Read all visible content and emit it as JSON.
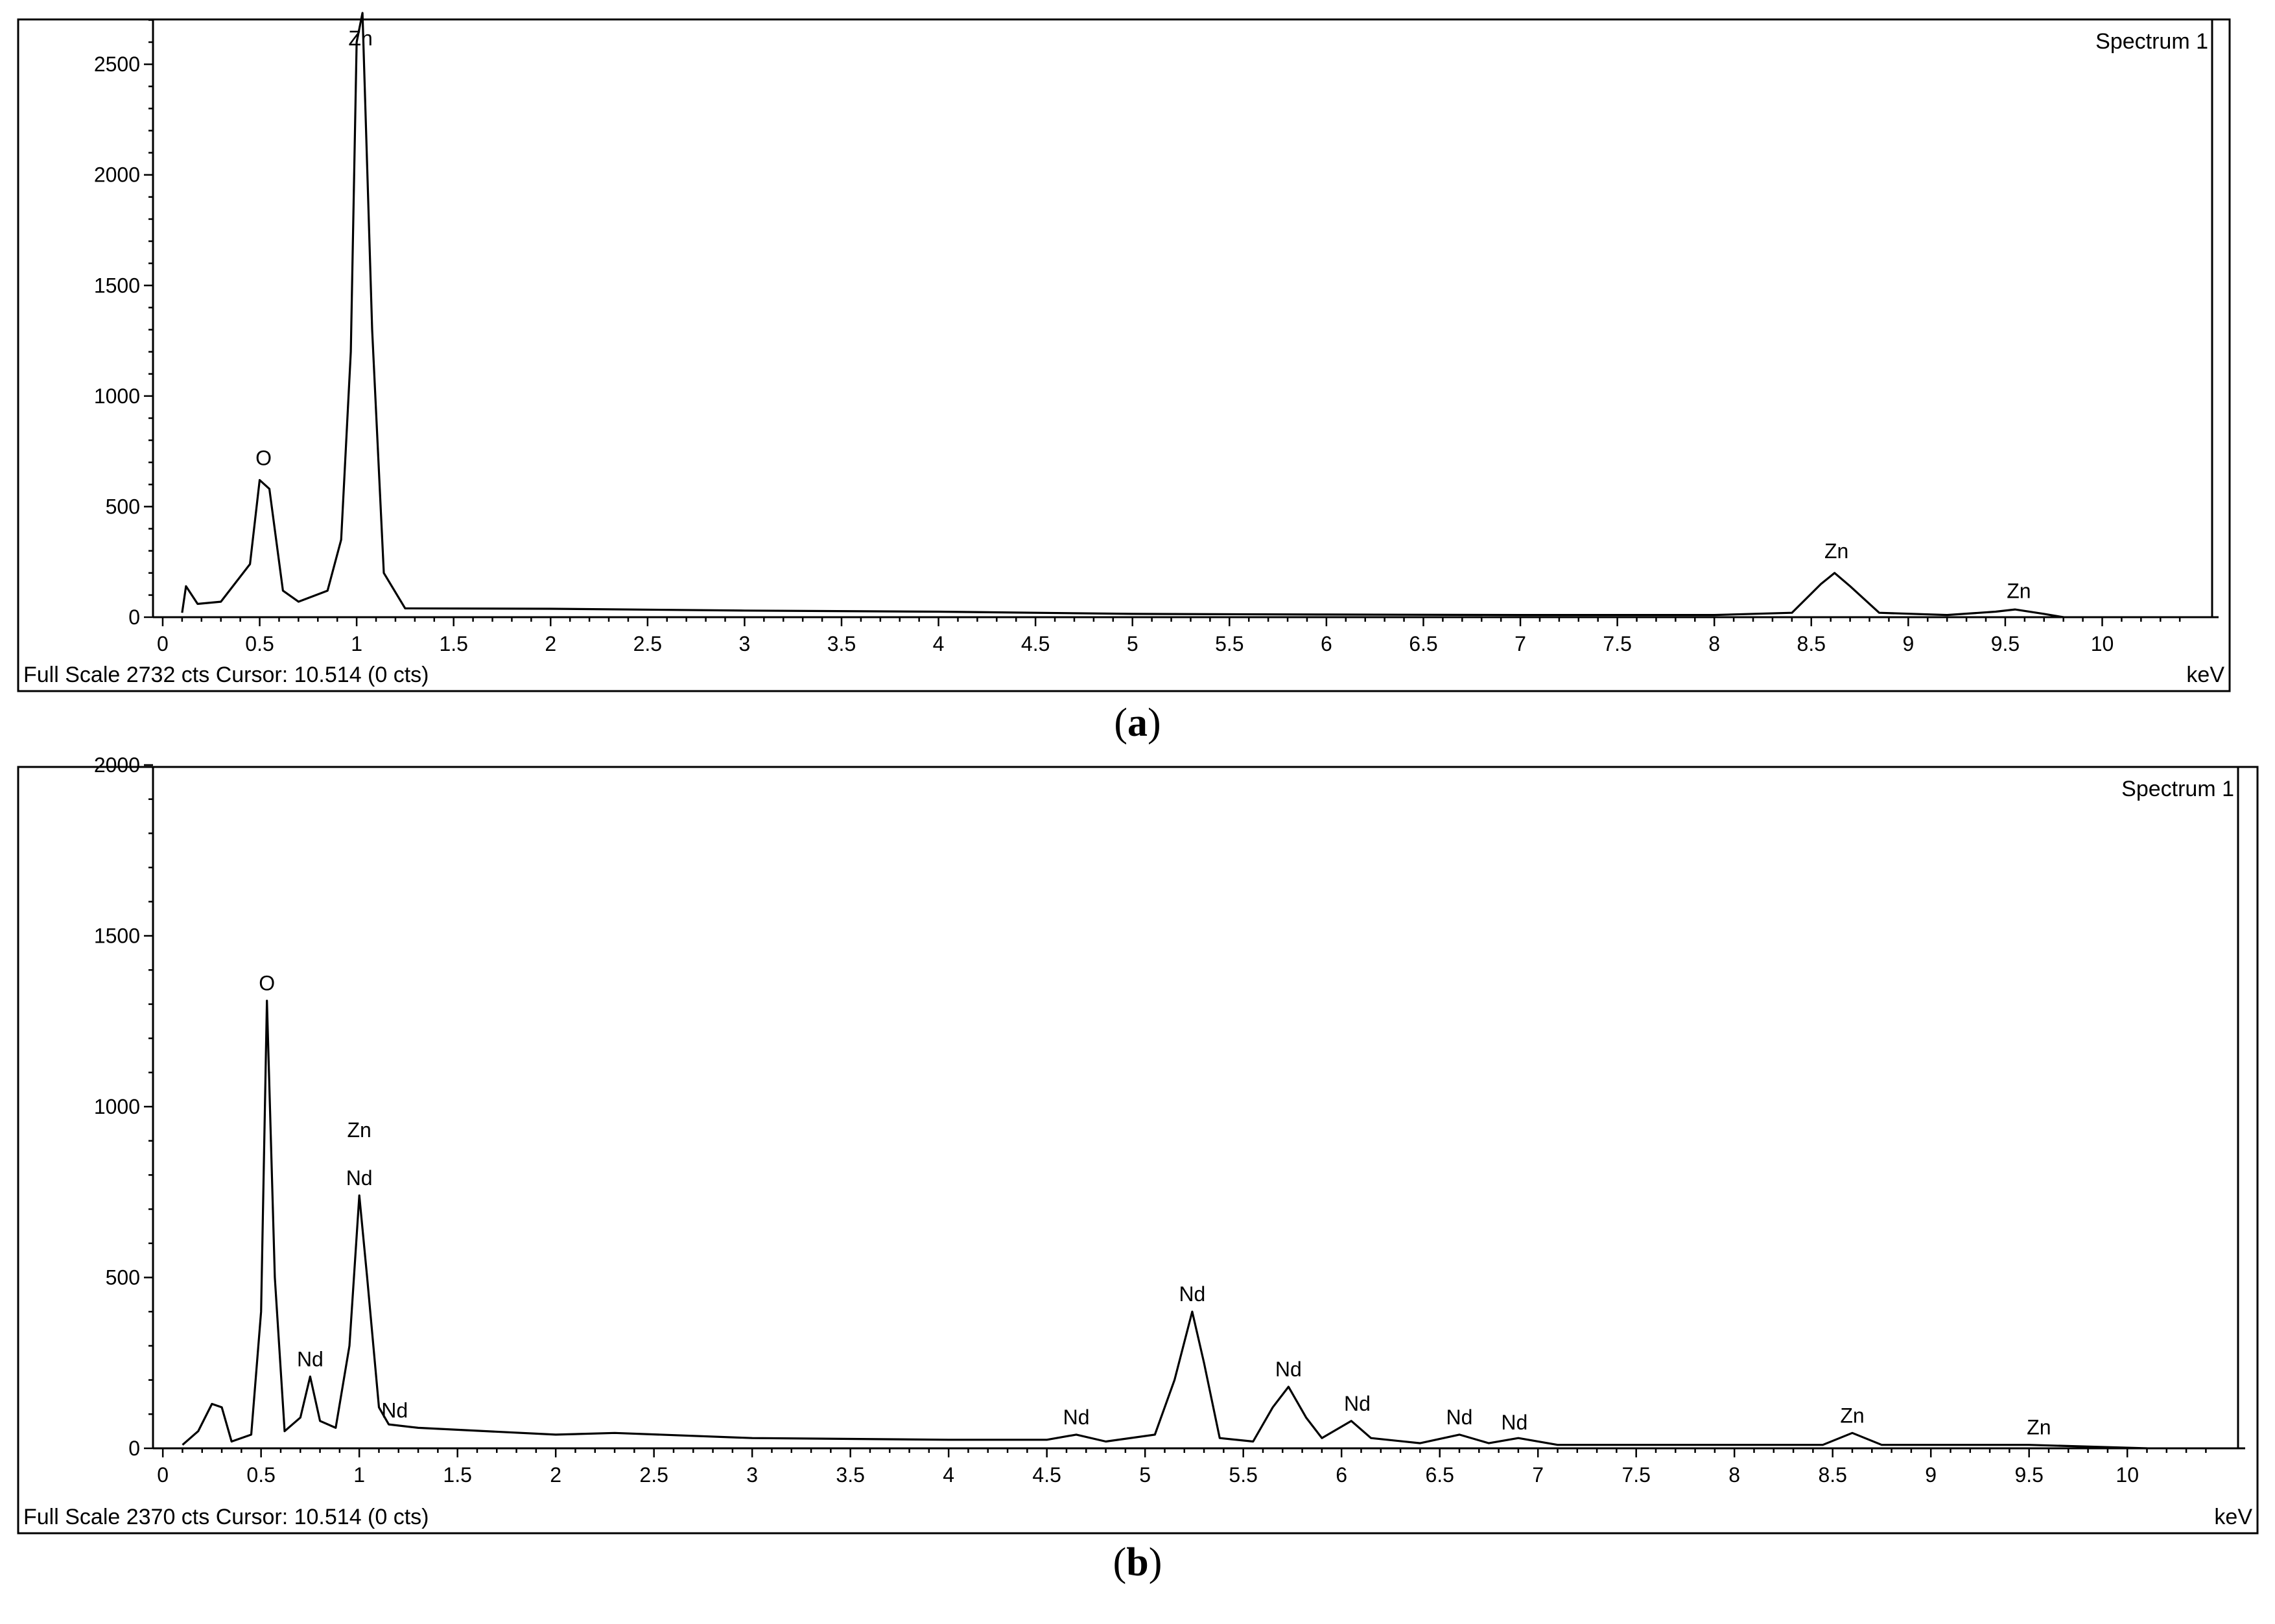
{
  "chart_data": [
    {
      "type": "line",
      "panel_caption": "a",
      "spectrum_label": "Spectrum 1",
      "status_text": "Full Scale 2732 cts Cursor: 10.514  (0 cts)",
      "x_unit": "keV",
      "xlim": [
        -0.05,
        10.6
      ],
      "ylim": [
        0,
        2732
      ],
      "x_ticks": [
        "0",
        "0.5",
        "1",
        "1.5",
        "2",
        "2.5",
        "3",
        "3.5",
        "4",
        "4.5",
        "5",
        "5.5",
        "6",
        "6.5",
        "7",
        "7.5",
        "8",
        "8.5",
        "9",
        "9.5",
        "10"
      ],
      "y_ticks": [
        "0",
        "500",
        "1000",
        "1500",
        "2000",
        "2500"
      ],
      "y_tick_values": [
        0,
        500,
        1000,
        1500,
        2000,
        2500
      ],
      "baseline": [
        [
          0.1,
          20
        ],
        [
          0.12,
          140
        ],
        [
          0.18,
          60
        ],
        [
          0.3,
          70
        ],
        [
          0.45,
          240
        ],
        [
          0.5,
          620
        ],
        [
          0.55,
          580
        ],
        [
          0.62,
          120
        ],
        [
          0.7,
          70
        ],
        [
          0.85,
          120
        ],
        [
          0.92,
          350
        ],
        [
          0.97,
          1200
        ],
        [
          1.0,
          2600
        ],
        [
          1.03,
          2732
        ],
        [
          1.08,
          1300
        ],
        [
          1.14,
          200
        ],
        [
          1.25,
          40
        ],
        [
          2,
          38
        ],
        [
          3,
          30
        ],
        [
          4,
          25
        ],
        [
          5,
          15
        ],
        [
          6,
          12
        ],
        [
          7,
          10
        ],
        [
          8,
          10
        ],
        [
          8.4,
          20
        ],
        [
          8.55,
          150
        ],
        [
          8.62,
          200
        ],
        [
          8.7,
          140
        ],
        [
          8.85,
          20
        ],
        [
          9.2,
          10
        ],
        [
          9.45,
          25
        ],
        [
          9.55,
          35
        ],
        [
          9.7,
          15
        ],
        [
          9.8,
          0
        ]
      ],
      "peaks": [
        {
          "label": "O",
          "x": 0.52,
          "y": 640
        },
        {
          "label": "Zn",
          "x": 1.02,
          "y": 2732
        },
        {
          "label": "Zn",
          "x": 8.63,
          "y": 220
        },
        {
          "label": "Zn",
          "x": 9.57,
          "y": 40
        }
      ]
    },
    {
      "type": "line",
      "panel_caption": "b",
      "spectrum_label": "Spectrum 1",
      "status_text": "Full Scale 2370 cts Cursor: 10.514  (0 cts)",
      "x_unit": "keV",
      "xlim": [
        -0.05,
        10.6
      ],
      "ylim": [
        0,
        2370
      ],
      "x_ticks": [
        "0",
        "0.5",
        "1",
        "1.5",
        "2",
        "2.5",
        "3",
        "3.5",
        "4",
        "4.5",
        "5",
        "5.5",
        "6",
        "6.5",
        "7",
        "7.5",
        "8",
        "8.5",
        "9",
        "9.5",
        "10"
      ],
      "y_ticks": [
        "0",
        "500",
        "1000",
        "1500",
        "2000"
      ],
      "y_tick_values": [
        0,
        500,
        1000,
        1500,
        2000
      ],
      "baseline": [
        [
          0.1,
          10
        ],
        [
          0.18,
          50
        ],
        [
          0.25,
          130
        ],
        [
          0.3,
          120
        ],
        [
          0.35,
          20
        ],
        [
          0.45,
          40
        ],
        [
          0.5,
          400
        ],
        [
          0.53,
          1310
        ],
        [
          0.57,
          500
        ],
        [
          0.62,
          50
        ],
        [
          0.7,
          90
        ],
        [
          0.75,
          210
        ],
        [
          0.8,
          80
        ],
        [
          0.88,
          60
        ],
        [
          0.95,
          300
        ],
        [
          1.0,
          740
        ],
        [
          1.04,
          500
        ],
        [
          1.1,
          120
        ],
        [
          1.15,
          70
        ],
        [
          1.3,
          60
        ],
        [
          2,
          40
        ],
        [
          2.3,
          45
        ],
        [
          3,
          30
        ],
        [
          4,
          25
        ],
        [
          4.5,
          25
        ],
        [
          4.65,
          40
        ],
        [
          4.8,
          20
        ],
        [
          5.05,
          40
        ],
        [
          5.15,
          200
        ],
        [
          5.24,
          400
        ],
        [
          5.3,
          250
        ],
        [
          5.38,
          30
        ],
        [
          5.55,
          20
        ],
        [
          5.65,
          120
        ],
        [
          5.73,
          180
        ],
        [
          5.82,
          90
        ],
        [
          5.9,
          30
        ],
        [
          6.05,
          80
        ],
        [
          6.15,
          30
        ],
        [
          6.4,
          15
        ],
        [
          6.6,
          40
        ],
        [
          6.75,
          15
        ],
        [
          6.9,
          30
        ],
        [
          7.1,
          10
        ],
        [
          8.0,
          10
        ],
        [
          8.45,
          10
        ],
        [
          8.6,
          45
        ],
        [
          8.75,
          10
        ],
        [
          9.5,
          10
        ],
        [
          10.1,
          0
        ]
      ],
      "peaks": [
        {
          "label": "O",
          "x": 0.53,
          "y": 1310
        },
        {
          "label": "Nd",
          "x": 0.75,
          "y": 210
        },
        {
          "label": "Nd",
          "x": 1.0,
          "y": 740
        },
        {
          "label": "Zn",
          "x": 1.0,
          "y": 880
        },
        {
          "label": "Nd",
          "x": 1.18,
          "y": 60
        },
        {
          "label": "Nd",
          "x": 4.65,
          "y": 40
        },
        {
          "label": "Nd",
          "x": 5.24,
          "y": 400
        },
        {
          "label": "Nd",
          "x": 5.73,
          "y": 180
        },
        {
          "label": "Nd",
          "x": 6.08,
          "y": 80
        },
        {
          "label": "Nd",
          "x": 6.6,
          "y": 40
        },
        {
          "label": "Nd",
          "x": 6.88,
          "y": 25
        },
        {
          "label": "Zn",
          "x": 8.6,
          "y": 45
        },
        {
          "label": "Zn",
          "x": 9.55,
          "y": 10
        }
      ]
    }
  ]
}
